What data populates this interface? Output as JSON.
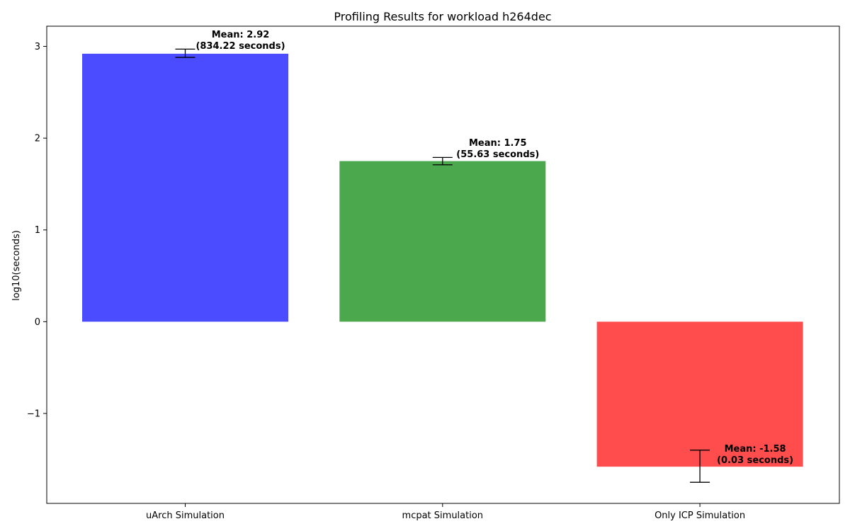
{
  "chart_data": {
    "type": "bar",
    "title": "Profiling Results for workload h264dec",
    "xlabel": "",
    "ylabel": "log10(seconds)",
    "categories": [
      "uArch Simulation",
      "mcpat Simulation",
      "Only ICP Simulation"
    ],
    "values": [
      2.92,
      1.75,
      -1.58
    ],
    "errors": [
      {
        "low": 2.88,
        "high": 2.97
      },
      {
        "low": 1.71,
        "high": 1.79
      },
      {
        "low": -1.75,
        "high": -1.4
      }
    ],
    "annotations": [
      {
        "line1": "Mean: 2.92",
        "line2": "(834.22 seconds)"
      },
      {
        "line1": "Mean: 1.75",
        "line2": "(55.63 seconds)"
      },
      {
        "line1": "Mean: -1.58",
        "line2": "(0.03 seconds)"
      }
    ],
    "colors": [
      "#4b4bff",
      "#4ca84c",
      "#ff4c4c"
    ],
    "yticks": [
      -1,
      0,
      1,
      2,
      3
    ],
    "ytick_labels": [
      "−1",
      "0",
      "1",
      "2",
      "3"
    ],
    "ylim": [
      -1.98,
      3.22
    ],
    "grid": false,
    "legend": "none"
  }
}
